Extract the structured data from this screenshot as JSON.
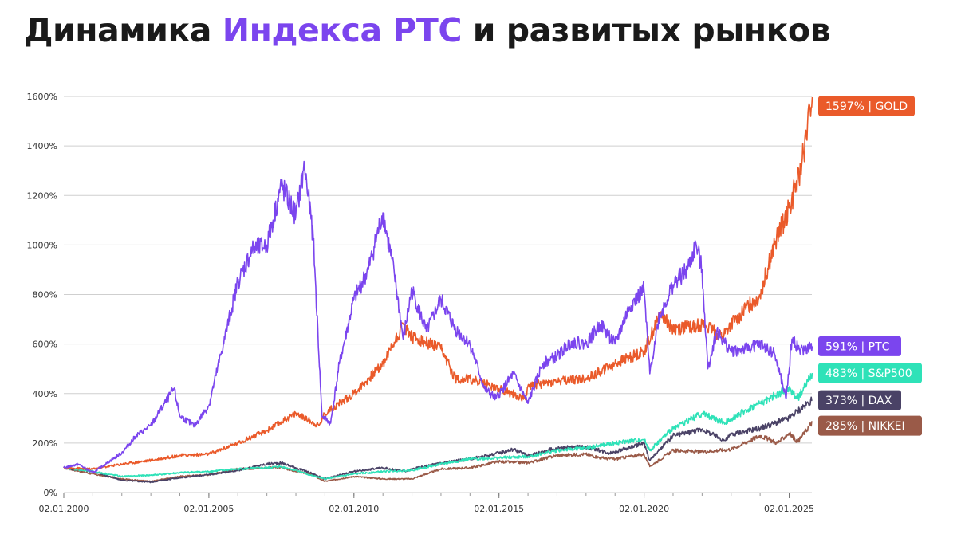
{
  "title": {
    "part1": "Динамика ",
    "part2": "Индекса РТС",
    "part3": " и развитых рынков",
    "accent_color": "#7b45ee"
  },
  "chart_data": {
    "type": "line",
    "y_axis": {
      "ylim": [
        0,
        1600
      ],
      "ticks": [
        0,
        200,
        400,
        600,
        800,
        1000,
        1200,
        1400,
        1600
      ],
      "tick_suffix": "%",
      "grid": true
    },
    "x_axis": {
      "xlim": [
        "2000-01-02",
        "2025-10-15"
      ],
      "ticks": [
        "2000-01-02",
        "2005-01-02",
        "2010-01-02",
        "2015-01-02",
        "2020-01-02",
        "2025-01-02"
      ],
      "tick_labels": [
        "02.01.2000",
        "02.01.2005",
        "02.01.2010",
        "02.01.2015",
        "02.01.2020",
        "02.01.2025"
      ],
      "minor_ticks": "yearly"
    },
    "series": [
      {
        "name": "NIKKEI",
        "color": "#9a5a48",
        "end_label": "285% | NIKKEI",
        "x": [
          2000.0,
          2001.0,
          2002.0,
          2003.0,
          2004.0,
          2005.0,
          2006.0,
          2007.0,
          2007.5,
          2008.0,
          2008.5,
          2009.0,
          2010.0,
          2011.0,
          2012.0,
          2013.0,
          2014.0,
          2015.0,
          2016.0,
          2017.0,
          2018.0,
          2018.5,
          2019.0,
          2020.0,
          2020.2,
          2021.0,
          2022.0,
          2023.0,
          2024.0,
          2024.6,
          2025.0,
          2025.3,
          2025.8
        ],
        "y": [
          100,
          75,
          55,
          45,
          65,
          72,
          95,
          100,
          102,
          85,
          75,
          45,
          65,
          55,
          55,
          95,
          100,
          125,
          120,
          150,
          155,
          140,
          135,
          155,
          105,
          170,
          165,
          175,
          230,
          200,
          240,
          205,
          285
        ]
      },
      {
        "name": "DAX",
        "color": "#4a4266",
        "end_label": "373% | DAX",
        "x": [
          2000.0,
          2001.0,
          2002.0,
          2003.0,
          2004.0,
          2005.0,
          2006.0,
          2007.0,
          2007.5,
          2008.0,
          2008.5,
          2009.0,
          2010.0,
          2011.0,
          2011.8,
          2012.0,
          2013.0,
          2014.0,
          2015.0,
          2015.5,
          2016.0,
          2017.0,
          2018.0,
          2018.8,
          2019.0,
          2020.0,
          2020.2,
          2021.0,
          2022.0,
          2022.8,
          2023.0,
          2024.0,
          2025.0,
          2025.3,
          2025.8
        ],
        "y": [
          100,
          85,
          50,
          42,
          60,
          72,
          90,
          115,
          120,
          100,
          80,
          55,
          85,
          100,
          85,
          95,
          120,
          135,
          160,
          175,
          150,
          180,
          185,
          160,
          165,
          200,
          130,
          230,
          255,
          210,
          235,
          260,
          300,
          330,
          373
        ]
      },
      {
        "name": "S&P500",
        "color": "#2ee2b8",
        "end_label": "483% | S&P500",
        "x": [
          2000.0,
          2001.0,
          2002.0,
          2003.0,
          2004.0,
          2005.0,
          2006.0,
          2007.0,
          2007.5,
          2008.0,
          2008.5,
          2009.0,
          2010.0,
          2011.0,
          2012.0,
          2013.0,
          2014.0,
          2015.0,
          2016.0,
          2017.0,
          2018.0,
          2019.0,
          2020.0,
          2020.2,
          2021.0,
          2022.0,
          2022.8,
          2023.0,
          2024.0,
          2024.5,
          2025.0,
          2025.3,
          2025.8
        ],
        "y": [
          100,
          85,
          65,
          70,
          80,
          85,
          95,
          100,
          105,
          90,
          70,
          55,
          75,
          85,
          90,
          115,
          135,
          140,
          145,
          170,
          180,
          200,
          215,
          170,
          260,
          320,
          280,
          300,
          360,
          390,
          420,
          380,
          483
        ]
      },
      {
        "name": "GOLD",
        "color": "#ea5a2a",
        "end_label": "1597% | GOLD",
        "x": [
          2000.0,
          2001.0,
          2002.0,
          2003.0,
          2004.0,
          2005.0,
          2006.0,
          2007.0,
          2008.0,
          2008.8,
          2009.0,
          2010.0,
          2011.0,
          2011.7,
          2012.0,
          2013.0,
          2013.5,
          2014.0,
          2015.0,
          2015.9,
          2016.0,
          2017.0,
          2018.0,
          2019.0,
          2020.0,
          2020.6,
          2021.0,
          2022.0,
          2022.7,
          2023.0,
          2024.0,
          2024.5,
          2025.0,
          2025.4,
          2025.8
        ],
        "y": [
          100,
          95,
          115,
          130,
          150,
          155,
          200,
          250,
          320,
          270,
          320,
          400,
          520,
          680,
          630,
          580,
          460,
          460,
          420,
          380,
          430,
          450,
          460,
          520,
          570,
          730,
          660,
          680,
          630,
          680,
          800,
          1000,
          1150,
          1300,
          1597
        ]
      },
      {
        "name": "РТС",
        "color": "#7b45ee",
        "end_label": "591% | РТС",
        "x": [
          2000.0,
          2000.5,
          2001.0,
          2001.5,
          2002.0,
          2002.5,
          2003.0,
          2003.8,
          2004.0,
          2004.5,
          2005.0,
          2005.5,
          2006.0,
          2006.5,
          2007.0,
          2007.5,
          2008.0,
          2008.3,
          2008.6,
          2008.9,
          2009.2,
          2009.5,
          2010.0,
          2010.5,
          2011.0,
          2011.4,
          2011.7,
          2012.0,
          2012.5,
          2013.0,
          2013.5,
          2014.0,
          2014.5,
          2014.9,
          2015.5,
          2016.0,
          2016.5,
          2017.0,
          2017.5,
          2018.0,
          2018.5,
          2019.0,
          2019.5,
          2020.0,
          2020.2,
          2020.5,
          2021.0,
          2021.5,
          2021.8,
          2022.0,
          2022.2,
          2022.5,
          2023.0,
          2023.5,
          2024.0,
          2024.5,
          2024.9,
          2025.1,
          2025.4,
          2025.8
        ],
        "y": [
          100,
          115,
          80,
          120,
          160,
          230,
          270,
          420,
          310,
          270,
          350,
          600,
          850,
          980,
          1000,
          1240,
          1120,
          1320,
          1030,
          310,
          280,
          520,
          780,
          900,
          1130,
          880,
          620,
          820,
          650,
          780,
          660,
          600,
          420,
          380,
          480,
          360,
          520,
          550,
          610,
          600,
          680,
          600,
          750,
          820,
          480,
          700,
          840,
          900,
          1000,
          900,
          500,
          650,
          570,
          580,
          600,
          560,
          380,
          620,
          570,
          591
        ]
      }
    ],
    "end_labels_order": [
      "GOLD",
      "РТС",
      "S&P500",
      "DAX",
      "NIKKEI"
    ]
  }
}
